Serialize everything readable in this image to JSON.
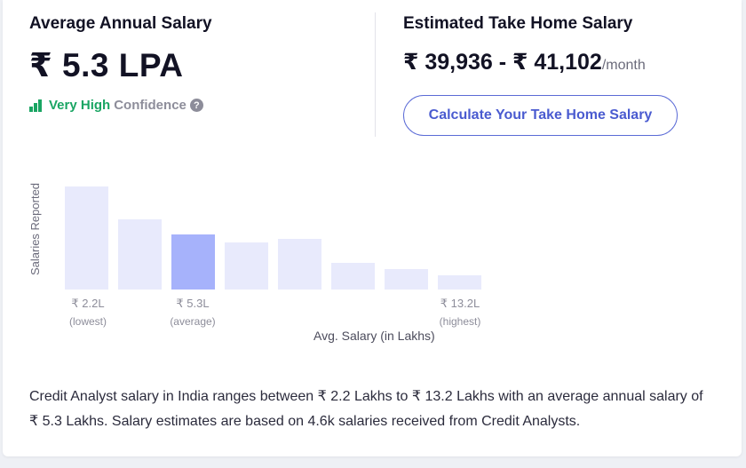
{
  "average": {
    "label": "Average Annual Salary",
    "value": "₹ 5.3 LPA",
    "confidence_level": "Very High",
    "confidence_text": "Confidence",
    "help_glyph": "?"
  },
  "takehome": {
    "label": "Estimated Take Home Salary",
    "range": "₹ 39,936 - ₹ 41,102",
    "unit": "/month",
    "button_label": "Calculate Your Take Home Salary"
  },
  "chart_data": {
    "type": "bar",
    "xlabel": "Avg. Salary (in Lakhs)",
    "ylabel": "Salaries Reported",
    "values": [
      116,
      79,
      62,
      53,
      57,
      30,
      23,
      16
    ],
    "highlight_index": 2,
    "colors": {
      "bar": "#e8eafc",
      "highlight": "#a6b2fb"
    },
    "ticks": [
      {
        "index": 0,
        "value": "₹ 2.2L",
        "note": "(lowest)"
      },
      {
        "index": 2,
        "value": "₹ 5.3L",
        "note": "(average)"
      },
      {
        "index": 7,
        "value": "₹ 13.2L",
        "note": "(highest)"
      }
    ]
  },
  "description": "Credit Analyst salary in India ranges between ₹ 2.2 Lakhs to ₹ 13.2 Lakhs with an average annual salary of ₹ 5.3 Lakhs. Salary estimates are based on 4.6k salaries received from Credit Analysts."
}
